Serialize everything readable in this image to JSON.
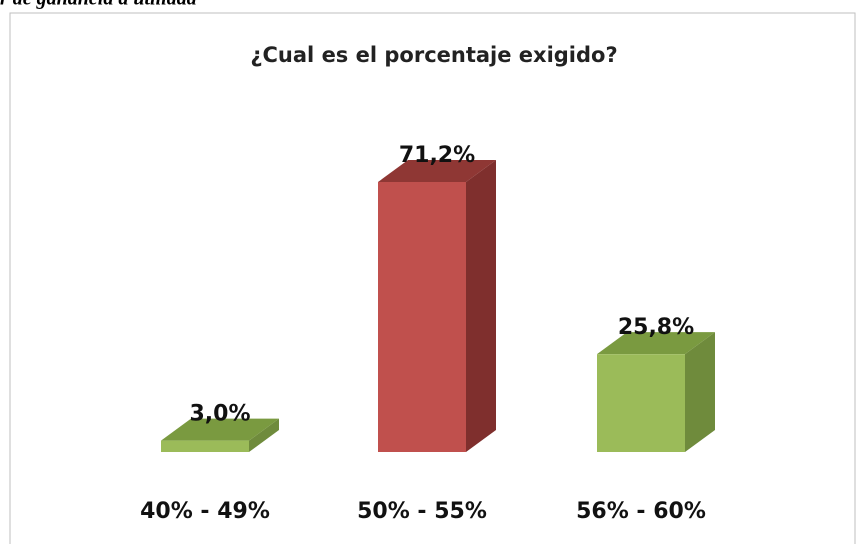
{
  "header_text": "r de ganancia a utilidad",
  "chart_data": {
    "type": "bar3d",
    "title": "¿Cual es el porcentaje exigido?",
    "categories": [
      "40% - 49%",
      "50% - 55%",
      "56% - 60%"
    ],
    "values": [
      3.0,
      71.2,
      25.8
    ],
    "value_labels": [
      "3,0%",
      "71,2%",
      "25,8%"
    ],
    "colors": [
      "#9bbb59",
      "#c0504d",
      "#9bbb59"
    ],
    "side_colors": [
      "#6f8b3c",
      "#7f2f2d",
      "#6f8b3c"
    ],
    "top_colors": [
      "#7a9a40",
      "#8f3734",
      "#7a9a40"
    ]
  }
}
